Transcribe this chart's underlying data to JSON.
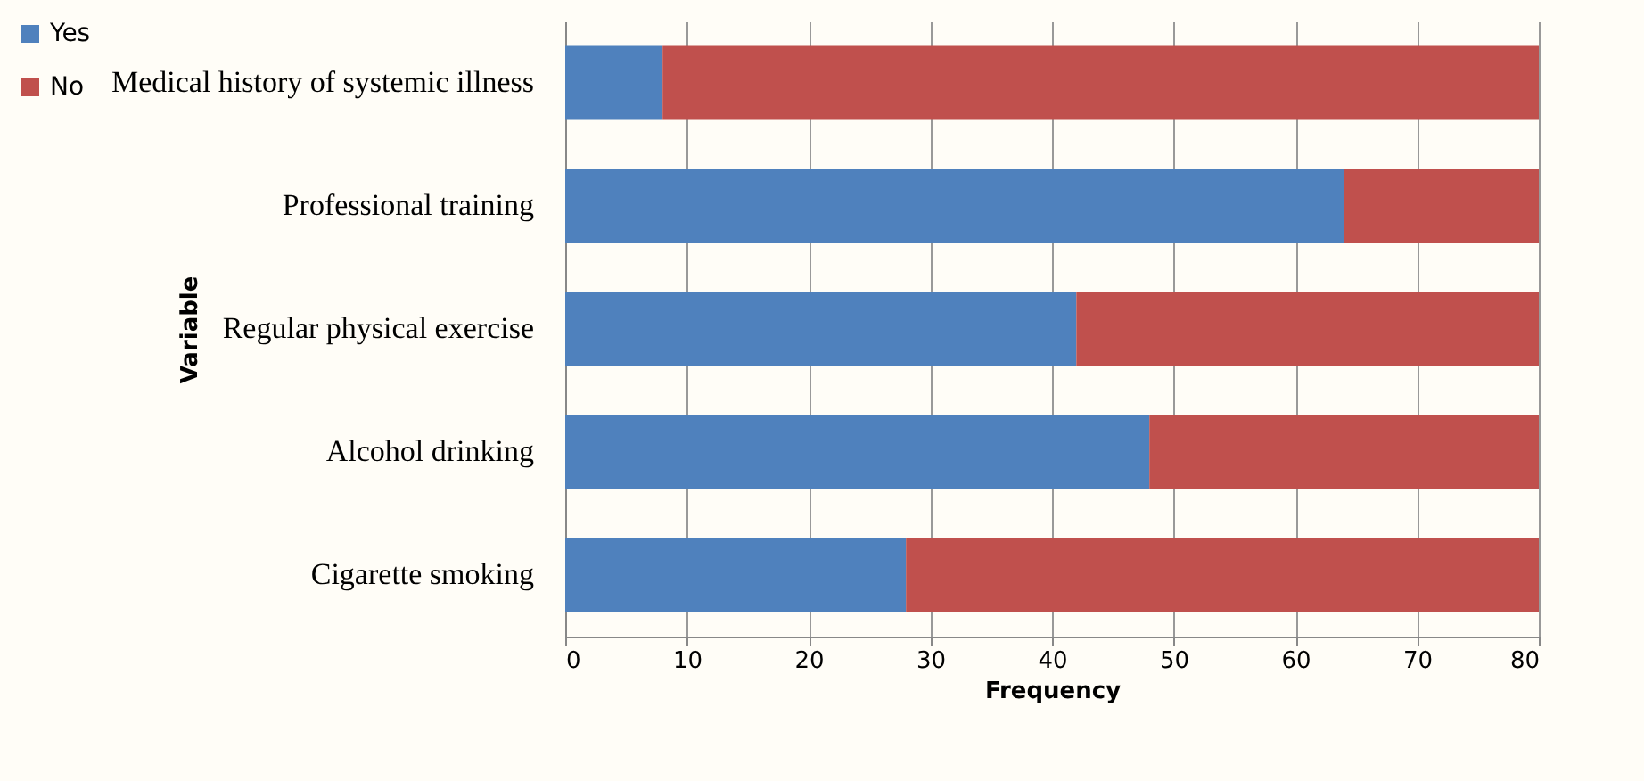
{
  "chart_data": {
    "type": "bar",
    "orientation": "horizontal",
    "stacked": true,
    "xlabel": "Frequency",
    "ylabel": "Variable",
    "categories": [
      "Medical history of systemic illness",
      "Professional training",
      "Regular physical exercise",
      "Alcohol drinking",
      "Cigarette smoking"
    ],
    "series": [
      {
        "name": "Yes",
        "color": "#4f81bd",
        "values": [
          8,
          64,
          42,
          48,
          28
        ]
      },
      {
        "name": "No",
        "color": "#c0504d",
        "values": [
          72,
          16,
          38,
          32,
          52
        ]
      }
    ],
    "xlim": [
      0,
      80
    ],
    "xticks": [
      0,
      10,
      20,
      30,
      40,
      50,
      60,
      70,
      80
    ],
    "grid": "x",
    "legend": "left"
  }
}
